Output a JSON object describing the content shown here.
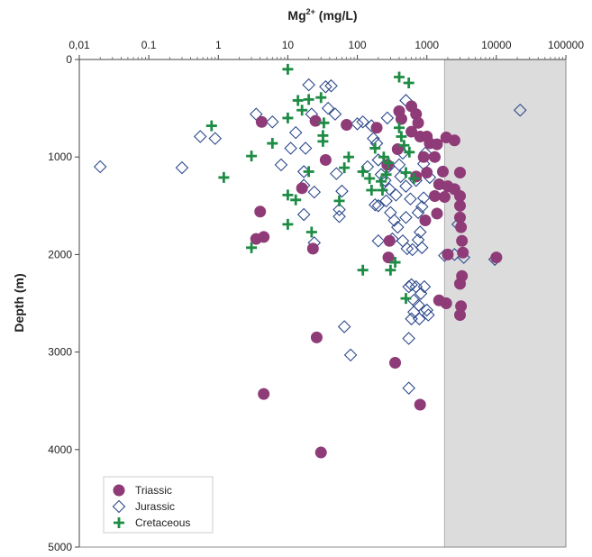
{
  "chart_data": {
    "type": "scatter",
    "xlabel_main": "Mg",
    "xlabel_sup": "2+",
    "xlabel_unit": " (mg/L)",
    "ylabel": "Depth (m)",
    "x_scale": "log",
    "xlim": [
      0.01,
      100000
    ],
    "ylim": [
      0,
      5000
    ],
    "y_inverted": true,
    "x_axis_position": "top",
    "grid": false,
    "x_ticks": [
      "0,01",
      "0.1",
      "1",
      "10",
      "100",
      "1000",
      "10000",
      "100000"
    ],
    "x_tick_values": [
      0.01,
      0.1,
      1,
      10,
      100,
      1000,
      10000,
      100000
    ],
    "y_ticks": [
      "0",
      "1000",
      "2000",
      "3000",
      "4000",
      "5000"
    ],
    "y_tick_values": [
      0,
      1000,
      2000,
      3000,
      4000,
      5000
    ],
    "shaded_region": {
      "x_from": 1800,
      "x_to": 100000,
      "color": "#dcdcdc"
    },
    "legend_position": "bottom-left",
    "series": [
      {
        "name": "Triassic",
        "marker": "circle",
        "color": "#8e3b78",
        "points": [
          [
            4.2,
            640
          ],
          [
            25,
            630
          ],
          [
            70,
            670
          ],
          [
            190,
            700
          ],
          [
            400,
            530
          ],
          [
            430,
            610
          ],
          [
            380,
            920
          ],
          [
            600,
            480
          ],
          [
            700,
            560
          ],
          [
            750,
            650
          ],
          [
            800,
            790
          ],
          [
            1000,
            790
          ],
          [
            1100,
            860
          ],
          [
            1400,
            870
          ],
          [
            1900,
            800
          ],
          [
            2500,
            830
          ],
          [
            600,
            740
          ],
          [
            900,
            1000
          ],
          [
            1300,
            1000
          ],
          [
            1000,
            1160
          ],
          [
            700,
            1200
          ],
          [
            1700,
            1150
          ],
          [
            1500,
            1280
          ],
          [
            2000,
            1300
          ],
          [
            1300,
            1400
          ],
          [
            1800,
            1410
          ],
          [
            2500,
            1330
          ],
          [
            3000,
            1160
          ],
          [
            3000,
            1400
          ],
          [
            3000,
            1500
          ],
          [
            1400,
            1580
          ],
          [
            950,
            1650
          ],
          [
            3000,
            1620
          ],
          [
            3100,
            1720
          ],
          [
            3200,
            1860
          ],
          [
            3300,
            1980
          ],
          [
            2000,
            2000
          ],
          [
            10000,
            2030
          ],
          [
            3200,
            2220
          ],
          [
            3000,
            2300
          ],
          [
            1500,
            2470
          ],
          [
            1900,
            2500
          ],
          [
            3100,
            2530
          ],
          [
            3000,
            2620
          ],
          [
            270,
            1080
          ],
          [
            290,
            1860
          ],
          [
            280,
            2030
          ],
          [
            4,
            1560
          ],
          [
            3.5,
            1840
          ],
          [
            4.5,
            1820
          ],
          [
            23,
            1940
          ],
          [
            16,
            1320
          ],
          [
            35,
            1030
          ],
          [
            26,
            2850
          ],
          [
            4.5,
            3430
          ],
          [
            350,
            3110
          ],
          [
            800,
            3540
          ],
          [
            30,
            4030
          ]
        ]
      },
      {
        "name": "Jurassic",
        "marker": "diamond-open",
        "color": "#2d4a8c",
        "points": [
          [
            0.02,
            1100
          ],
          [
            0.3,
            1110
          ],
          [
            0.55,
            790
          ],
          [
            0.9,
            810
          ],
          [
            3.5,
            560
          ],
          [
            6,
            640
          ],
          [
            8,
            1080
          ],
          [
            11,
            910
          ],
          [
            13,
            750
          ],
          [
            17,
            1150
          ],
          [
            17,
            1290
          ],
          [
            18,
            910
          ],
          [
            17,
            1590
          ],
          [
            20,
            260
          ],
          [
            22,
            560
          ],
          [
            24,
            1360
          ],
          [
            24,
            1880
          ],
          [
            35,
            280
          ],
          [
            38,
            500
          ],
          [
            42,
            270
          ],
          [
            48,
            560
          ],
          [
            50,
            1170
          ],
          [
            55,
            1540
          ],
          [
            55,
            1610
          ],
          [
            60,
            1350
          ],
          [
            65,
            2740
          ],
          [
            80,
            3030
          ],
          [
            100,
            660
          ],
          [
            120,
            640
          ],
          [
            140,
            1100
          ],
          [
            160,
            680
          ],
          [
            170,
            810
          ],
          [
            190,
            860
          ],
          [
            200,
            1030
          ],
          [
            220,
            1180
          ],
          [
            180,
            1490
          ],
          [
            200,
            1500
          ],
          [
            200,
            1860
          ],
          [
            250,
            1240
          ],
          [
            260,
            1450
          ],
          [
            270,
            600
          ],
          [
            280,
            1100
          ],
          [
            290,
            1330
          ],
          [
            300,
            1570
          ],
          [
            320,
            1840
          ],
          [
            340,
            1650
          ],
          [
            360,
            1390
          ],
          [
            380,
            1720
          ],
          [
            400,
            1080
          ],
          [
            420,
            1200
          ],
          [
            450,
            960
          ],
          [
            450,
            1860
          ],
          [
            500,
            420
          ],
          [
            500,
            1300
          ],
          [
            500,
            1620
          ],
          [
            520,
            1940
          ],
          [
            550,
            2330
          ],
          [
            550,
            2860
          ],
          [
            550,
            3370
          ],
          [
            580,
            1430
          ],
          [
            600,
            2310
          ],
          [
            600,
            2660
          ],
          [
            620,
            1950
          ],
          [
            650,
            2470
          ],
          [
            650,
            2590
          ],
          [
            700,
            1240
          ],
          [
            700,
            2330
          ],
          [
            750,
            1570
          ],
          [
            750,
            1850
          ],
          [
            760,
            2520
          ],
          [
            780,
            2660
          ],
          [
            800,
            1770
          ],
          [
            820,
            2400
          ],
          [
            850,
            1510
          ],
          [
            850,
            1930
          ],
          [
            900,
            1070
          ],
          [
            900,
            1420
          ],
          [
            920,
            2330
          ],
          [
            950,
            960
          ],
          [
            1000,
            2570
          ],
          [
            1050,
            2620
          ],
          [
            1100,
            1210
          ],
          [
            1800,
            2010
          ],
          [
            2500,
            2000
          ],
          [
            2800,
            1690
          ],
          [
            3400,
            2030
          ],
          [
            9500,
            2050
          ],
          [
            22000,
            520
          ]
        ]
      },
      {
        "name": "Cretaceous",
        "marker": "plus",
        "color": "#1e8c45",
        "points": [
          [
            10,
            100
          ],
          [
            14,
            420
          ],
          [
            16,
            520
          ],
          [
            20,
            410
          ],
          [
            30,
            390
          ],
          [
            10,
            600
          ],
          [
            0.8,
            680
          ],
          [
            6,
            860
          ],
          [
            3,
            990
          ],
          [
            1.2,
            1210
          ],
          [
            33,
            650
          ],
          [
            32,
            780
          ],
          [
            32,
            840
          ],
          [
            20,
            1150
          ],
          [
            10,
            1390
          ],
          [
            13,
            1440
          ],
          [
            10,
            1690
          ],
          [
            22,
            1770
          ],
          [
            3,
            1930
          ],
          [
            55,
            1450
          ],
          [
            65,
            1110
          ],
          [
            75,
            1000
          ],
          [
            120,
            1150
          ],
          [
            150,
            1220
          ],
          [
            160,
            1340
          ],
          [
            180,
            910
          ],
          [
            220,
            1250
          ],
          [
            230,
            1340
          ],
          [
            240,
            1000
          ],
          [
            260,
            1180
          ],
          [
            280,
            1060
          ],
          [
            300,
            2160
          ],
          [
            350,
            2080
          ],
          [
            400,
            180
          ],
          [
            430,
            790
          ],
          [
            470,
            880
          ],
          [
            500,
            1160
          ],
          [
            500,
            2450
          ],
          [
            550,
            240
          ],
          [
            560,
            950
          ],
          [
            650,
            1220
          ],
          [
            120,
            2160
          ],
          [
            400,
            700
          ]
        ]
      }
    ]
  }
}
